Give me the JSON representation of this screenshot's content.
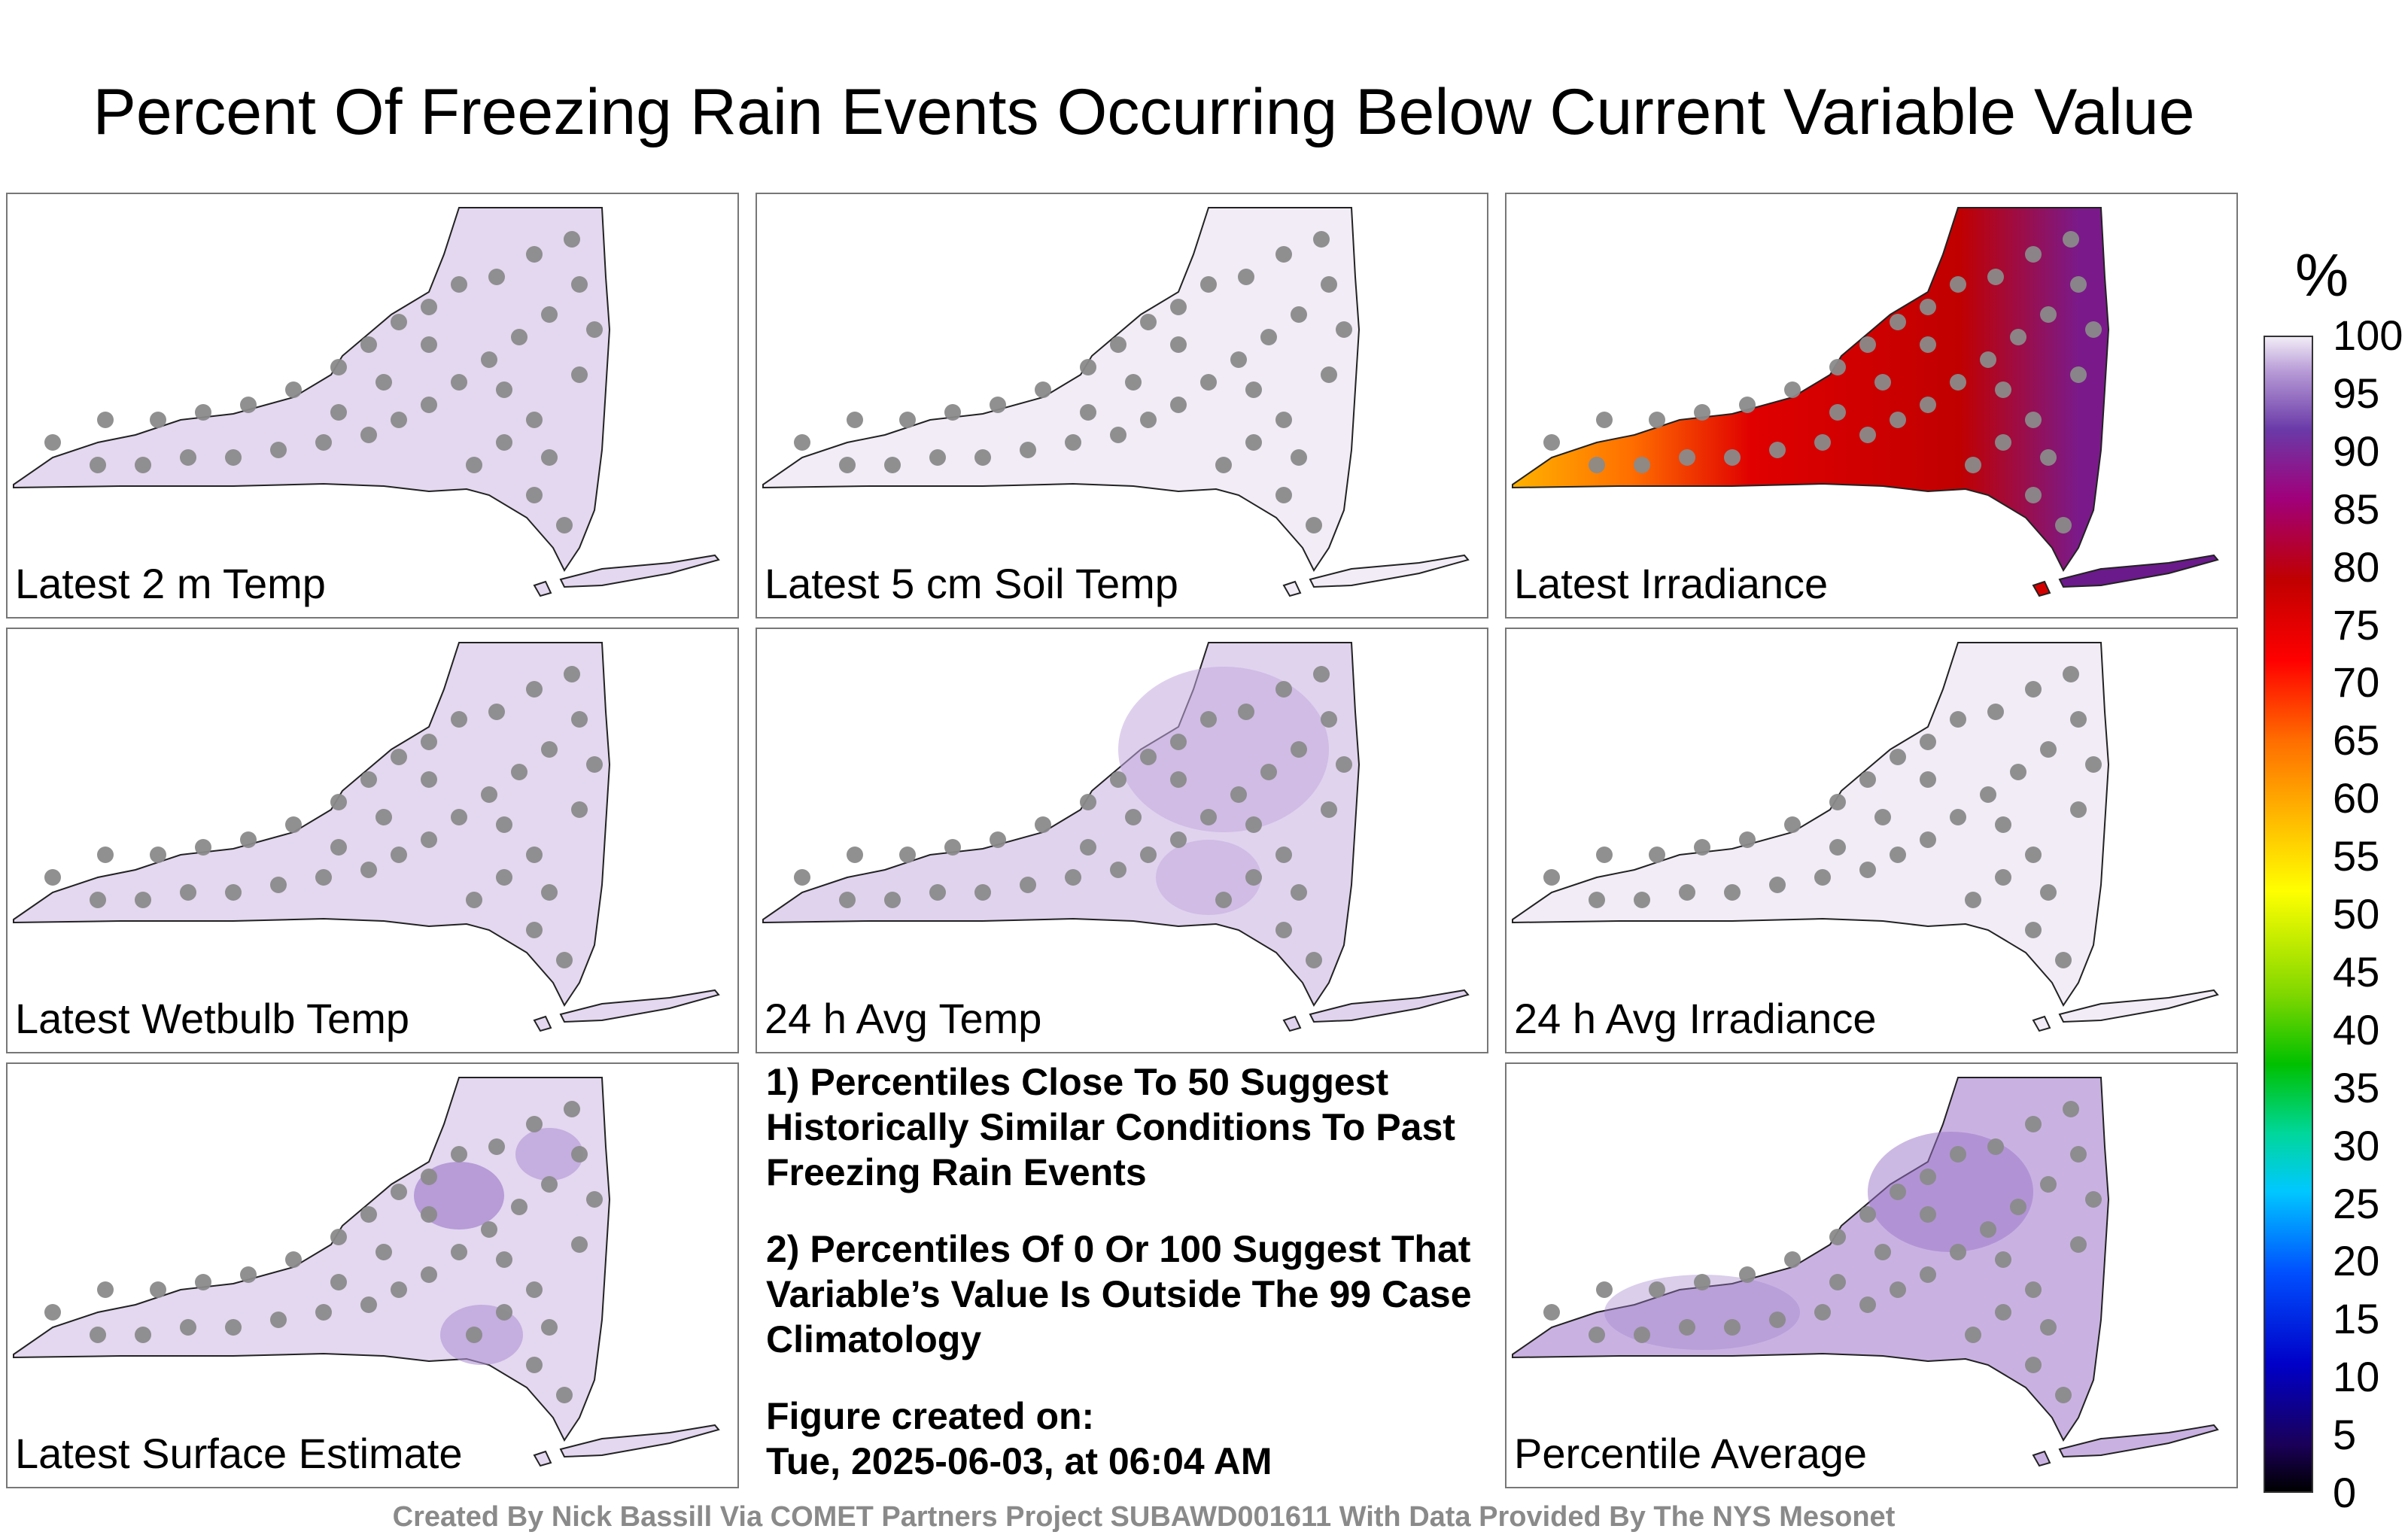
{
  "title": "Percent Of Freezing Rain Events Occurring Below Current Variable Value",
  "panels": [
    {
      "label": "Latest 2 m Temp",
      "fill": "#e3d8ef"
    },
    {
      "label": "Latest 5 cm Soil Temp",
      "fill": "#f1ecf6"
    },
    {
      "label": "Latest Irradiance",
      "fill": "#d40000"
    },
    {
      "label": "Latest Wetbulb Temp",
      "fill": "#e3d8ef"
    },
    {
      "label": "24 h Avg Temp",
      "fill": "#e0d3ee"
    },
    {
      "label": "24 h Avg Irradiance",
      "fill": "#f1ecf6"
    },
    {
      "label": "Latest Surface Estimate",
      "fill": "#e3d8ef"
    },
    {
      "label": "Percentile Average",
      "fill": "#c9b2e2"
    }
  ],
  "notes": {
    "note1": "1) Percentiles Close To 50 Suggest Historically Similar Conditions To Past Freezing Rain Events",
    "note2": "2) Percentiles Of 0 Or 100 Suggest That Variable’s Value Is Outside The 99 Case Climatology",
    "created_label": "Figure created on:",
    "created_time": "Tue, 2025-06-03, at 06:04 AM"
  },
  "colorbar": {
    "unit": "%",
    "ticks": [
      "100",
      "95",
      "90",
      "85",
      "80",
      "75",
      "70",
      "65",
      "60",
      "55",
      "50",
      "45",
      "40",
      "35",
      "30",
      "25",
      "20",
      "15",
      "10",
      "5",
      "0"
    ]
  },
  "credit": "Created By Nick Bassill Via COMET Partners Project SUBAWD001611 With Data Provided By The NYS Mesonet"
}
